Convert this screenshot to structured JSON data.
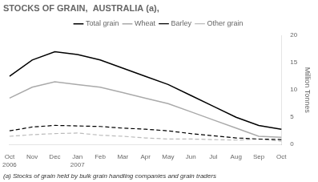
{
  "chart_data": {
    "type": "line",
    "title": "STOCKS OF GRAIN,  AUSTRALIA (a),",
    "y_label": "Million Tonnes",
    "annotations": [
      "(a) Stocks of grain held by bulk grain handling companies and grain traders"
    ],
    "categories": [
      "Oct\n2006",
      "Nov",
      "Dec",
      "Jan\n2007",
      "Feb",
      "Mar",
      "Apr",
      "May",
      "Jun",
      "Jul",
      "Aug",
      "Sep",
      "Oct"
    ],
    "series": [
      {
        "name": "Total grain",
        "color": "#000000",
        "line_style": "solid",
        "values": [
          12.5,
          15.5,
          17.0,
          16.5,
          15.5,
          14.0,
          12.5,
          11.0,
          9.0,
          7.0,
          5.0,
          3.5,
          2.8
        ]
      },
      {
        "name": "Wheat",
        "color": "#aaaaaa",
        "line_style": "solid",
        "values": [
          8.5,
          10.5,
          11.5,
          11.0,
          10.5,
          9.5,
          8.5,
          7.5,
          6.0,
          4.5,
          3.0,
          1.5,
          1.3
        ]
      },
      {
        "name": "Barley",
        "color": "#000000",
        "line_style": "dashed",
        "values": [
          2.5,
          3.2,
          3.5,
          3.4,
          3.3,
          3.0,
          2.8,
          2.5,
          2.0,
          1.6,
          1.2,
          1.0,
          0.9
        ]
      },
      {
        "name": "Other grain",
        "color": "#bbbbbb",
        "line_style": "dashed",
        "values": [
          1.5,
          1.8,
          2.0,
          2.1,
          1.7,
          1.5,
          1.2,
          1.0,
          1.0,
          0.9,
          0.8,
          1.0,
          0.6
        ]
      }
    ],
    "ylim": [
      0,
      20
    ],
    "yticks": [
      0,
      5,
      10,
      15,
      20
    ],
    "grid": false,
    "legend": "top"
  }
}
